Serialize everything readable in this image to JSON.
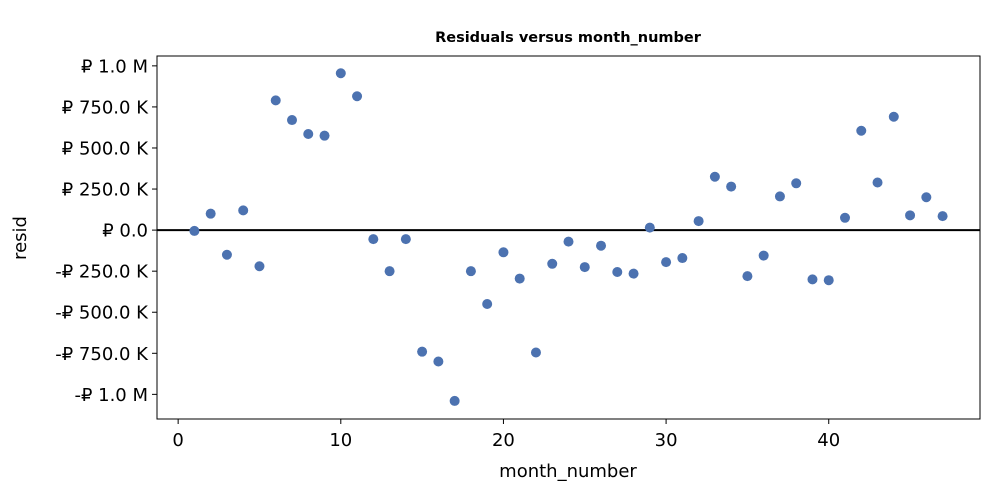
{
  "chart_data": {
    "type": "scatter",
    "title": "Residuals versus month_number",
    "xlabel": "month_number",
    "ylabel": "resid",
    "xlim": [
      -1.3,
      49.3
    ],
    "ylim": [
      -1150000,
      1060000
    ],
    "x_ticks": [
      0,
      10,
      20,
      30,
      40
    ],
    "x_tick_labels": [
      "0",
      "10",
      "20",
      "30",
      "40"
    ],
    "y_ticks": [
      1000000,
      750000,
      500000,
      250000,
      0,
      -250000,
      -500000,
      -750000,
      -1000000
    ],
    "y_tick_labels": [
      "₽ 1.0 M",
      "₽ 750.0 K",
      "₽ 500.0 K",
      "₽ 250.0 K",
      "₽ 0.0",
      "-₽ 250.0 K",
      "-₽ 500.0 K",
      "-₽ 750.0 K",
      "-₽ 1.0 M"
    ],
    "reference_line_y": 0,
    "grid": false,
    "marker_color": "#4c72b0",
    "points": [
      {
        "x": 1,
        "y": -5000
      },
      {
        "x": 2,
        "y": 100000
      },
      {
        "x": 3,
        "y": -150000
      },
      {
        "x": 4,
        "y": 120000
      },
      {
        "x": 5,
        "y": -220000
      },
      {
        "x": 6,
        "y": 790000
      },
      {
        "x": 7,
        "y": 670000
      },
      {
        "x": 8,
        "y": 585000
      },
      {
        "x": 9,
        "y": 575000
      },
      {
        "x": 10,
        "y": 955000
      },
      {
        "x": 11,
        "y": 815000
      },
      {
        "x": 12,
        "y": -55000
      },
      {
        "x": 13,
        "y": -250000
      },
      {
        "x": 14,
        "y": -55000
      },
      {
        "x": 15,
        "y": -740000
      },
      {
        "x": 16,
        "y": -800000
      },
      {
        "x": 17,
        "y": -1040000
      },
      {
        "x": 18,
        "y": -250000
      },
      {
        "x": 19,
        "y": -450000
      },
      {
        "x": 20,
        "y": -135000
      },
      {
        "x": 21,
        "y": -295000
      },
      {
        "x": 22,
        "y": -745000
      },
      {
        "x": 23,
        "y": -205000
      },
      {
        "x": 24,
        "y": -70000
      },
      {
        "x": 25,
        "y": -225000
      },
      {
        "x": 26,
        "y": -95000
      },
      {
        "x": 27,
        "y": -255000
      },
      {
        "x": 28,
        "y": -265000
      },
      {
        "x": 29,
        "y": 15000
      },
      {
        "x": 30,
        "y": -195000
      },
      {
        "x": 31,
        "y": -170000
      },
      {
        "x": 32,
        "y": 55000
      },
      {
        "x": 33,
        "y": 325000
      },
      {
        "x": 34,
        "y": 265000
      },
      {
        "x": 35,
        "y": -280000
      },
      {
        "x": 36,
        "y": -155000
      },
      {
        "x": 37,
        "y": 205000
      },
      {
        "x": 38,
        "y": 285000
      },
      {
        "x": 39,
        "y": -300000
      },
      {
        "x": 40,
        "y": -305000
      },
      {
        "x": 41,
        "y": 75000
      },
      {
        "x": 42,
        "y": 605000
      },
      {
        "x": 43,
        "y": 290000
      },
      {
        "x": 44,
        "y": 690000
      },
      {
        "x": 45,
        "y": 90000
      },
      {
        "x": 46,
        "y": 200000
      },
      {
        "x": 47,
        "y": 85000
      }
    ]
  }
}
